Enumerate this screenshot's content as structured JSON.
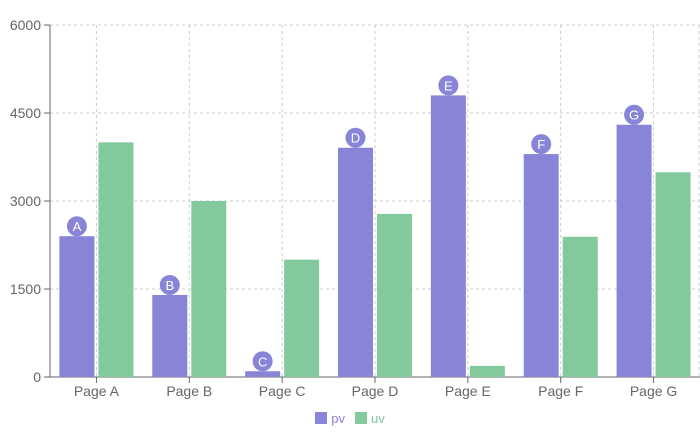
{
  "chart_data": {
    "type": "bar",
    "categories": [
      "Page A",
      "Page B",
      "Page C",
      "Page D",
      "Page E",
      "Page F",
      "Page G"
    ],
    "series": [
      {
        "name": "pv",
        "color": "#8884d8",
        "values": [
          2400,
          1398,
          98,
          3908,
          4800,
          3800,
          4300
        ],
        "point_labels": [
          "A",
          "B",
          "C",
          "D",
          "E",
          "F",
          "G"
        ]
      },
      {
        "name": "uv",
        "color": "#82ca9d",
        "values": [
          4000,
          3000,
          2000,
          2780,
          189,
          2390,
          3490
        ]
      }
    ],
    "yticks": [
      "0",
      "1500",
      "3000",
      "4500",
      "6000"
    ],
    "ylim": [
      0,
      6000
    ],
    "grid": true,
    "grid_style": "dashed",
    "legend_position": "bottom",
    "title": "",
    "xlabel": "",
    "ylabel": ""
  }
}
